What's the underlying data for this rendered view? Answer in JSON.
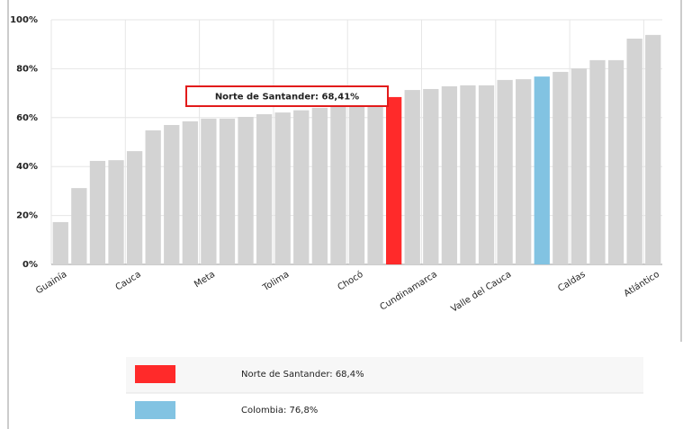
{
  "chart_data": {
    "type": "bar",
    "categories": [
      "Guainía",
      null,
      null,
      null,
      "Cauca",
      null,
      null,
      null,
      "Meta",
      null,
      null,
      null,
      "Tolima",
      null,
      null,
      null,
      "Chocó",
      null,
      null,
      null,
      "Cundinamarca",
      null,
      null,
      null,
      "Valle del Cauca",
      null,
      null,
      null,
      "Caldas",
      null,
      null,
      null,
      "Atlántico"
    ],
    "values": [
      17.3,
      31.2,
      42.3,
      42.6,
      46.3,
      54.8,
      57,
      58.5,
      59.6,
      59.6,
      60.3,
      61.4,
      62.1,
      63,
      64,
      65,
      66,
      67,
      68.41,
      71.3,
      71.7,
      72.8,
      73.2,
      73.2,
      75.4,
      75.7,
      76.8,
      78.7,
      80.1,
      83.5,
      83.5,
      92.3,
      93.8
    ],
    "bar_colors": [
      "#d3d3d3",
      "#d3d3d3",
      "#d3d3d3",
      "#d3d3d3",
      "#d3d3d3",
      "#d3d3d3",
      "#d3d3d3",
      "#d3d3d3",
      "#d3d3d3",
      "#d3d3d3",
      "#d3d3d3",
      "#d3d3d3",
      "#d3d3d3",
      "#d3d3d3",
      "#d3d3d3",
      "#d3d3d3",
      "#d3d3d3",
      "#d3d3d3",
      "#ff2a2a",
      "#d3d3d3",
      "#d3d3d3",
      "#d3d3d3",
      "#d3d3d3",
      "#d3d3d3",
      "#d3d3d3",
      "#d3d3d3",
      "#82c3e2",
      "#d3d3d3",
      "#d3d3d3",
      "#d3d3d3",
      "#d3d3d3",
      "#d3d3d3",
      "#d3d3d3"
    ],
    "ylim": [
      0,
      100
    ],
    "yticks": [
      {
        "value": 0,
        "label": "0%"
      },
      {
        "value": 20,
        "label": "20%"
      },
      {
        "value": 40,
        "label": "40%"
      },
      {
        "value": 60,
        "label": "60%"
      },
      {
        "value": 80,
        "label": "80%"
      },
      {
        "value": 100,
        "label": "100%"
      }
    ],
    "grid": true,
    "annotation": "Norte de Santander: 68,41%",
    "legend": [
      {
        "text": "Norte de Santander:  68,4%",
        "color": "#ff2a2a"
      },
      {
        "text": "Colombia:  76,8%",
        "color": "#82c3e2"
      }
    ]
  }
}
